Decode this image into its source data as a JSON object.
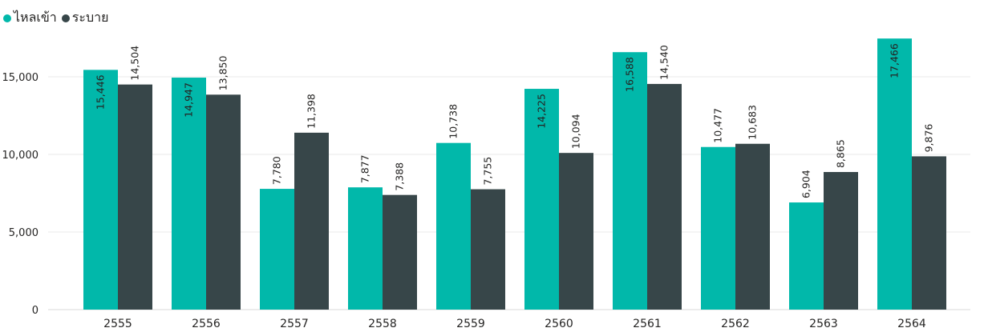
{
  "legend": [
    {
      "label": "ไหลเข้า",
      "color": "#01B8AA"
    },
    {
      "label": "ระบาย",
      "color": "#374649"
    }
  ],
  "chart_data": {
    "type": "bar",
    "categories": [
      "2555",
      "2556",
      "2557",
      "2558",
      "2559",
      "2560",
      "2561",
      "2562",
      "2563",
      "2564"
    ],
    "series": [
      {
        "name": "ไหลเข้า",
        "color": "#01B8AA",
        "values": [
          15446,
          14947,
          7780,
          7877,
          10738,
          14225,
          16588,
          10477,
          6904,
          17466
        ],
        "labels": [
          "15,446",
          "14,947",
          "7,780",
          "7,877",
          "10,738",
          "14,225",
          "16,588",
          "10,477",
          "6,904",
          "17,466"
        ]
      },
      {
        "name": "ระบาย",
        "color": "#374649",
        "values": [
          14504,
          13850,
          11398,
          7388,
          7755,
          10094,
          14540,
          10683,
          8865,
          9876
        ],
        "labels": [
          "14,504",
          "13,850",
          "11,398",
          "7,388",
          "7,755",
          "10,094",
          "14,540",
          "10,683",
          "8,865",
          "9,876"
        ]
      }
    ],
    "y_ticks": [
      0,
      5000,
      10000,
      15000
    ],
    "y_tick_labels": [
      "0",
      "5,000",
      "10,000",
      "15,000"
    ],
    "ylim": [
      0,
      17500
    ],
    "grid": true,
    "legend_position": "top-left"
  }
}
